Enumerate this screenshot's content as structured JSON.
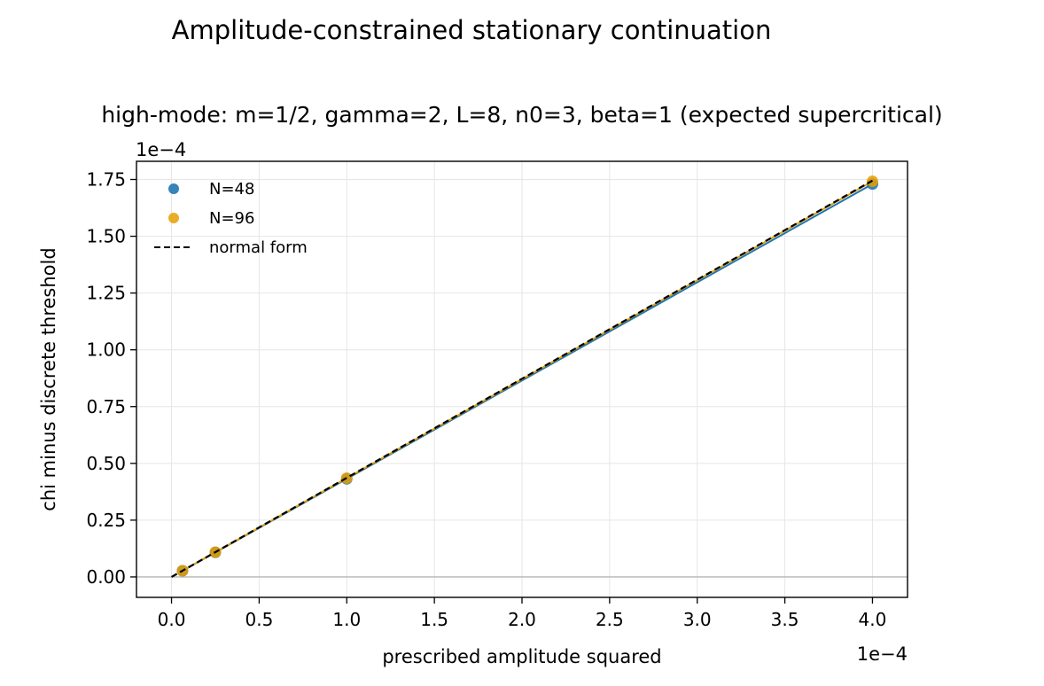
{
  "chart_data": {
    "type": "scatter",
    "title": "Amplitude-constrained stationary continuation",
    "subtitle": "high-mode: m=1/2, gamma=2, L=8, n0=3, beta=1 (expected supercritical)",
    "xlabel": "prescribed amplitude squared",
    "ylabel": "chi minus discrete threshold",
    "x_scale_label": "1e−4",
    "y_scale_label": "1e−4",
    "xlim": [
      -0.2,
      4.2
    ],
    "ylim": [
      -0.09,
      1.83
    ],
    "xticks": [
      0.0,
      0.5,
      1.0,
      1.5,
      2.0,
      2.5,
      3.0,
      3.5,
      4.0
    ],
    "xtick_labels": [
      "0.0",
      "0.5",
      "1.0",
      "1.5",
      "2.0",
      "2.5",
      "3.0",
      "3.5",
      "4.0"
    ],
    "yticks": [
      0.0,
      0.25,
      0.5,
      0.75,
      1.0,
      1.25,
      1.5,
      1.75
    ],
    "ytick_labels": [
      "0.00",
      "0.25",
      "0.50",
      "0.75",
      "1.00",
      "1.25",
      "1.50",
      "1.75"
    ],
    "grid": true,
    "legend_position": "top-left",
    "series": [
      {
        "name": "N=48",
        "kind": "scatter",
        "color": "#1f77b4",
        "x": [
          0.0625,
          0.25,
          1.0,
          4.0
        ],
        "y": [
          0.027,
          0.108,
          0.432,
          1.73
        ]
      },
      {
        "name": "N=96",
        "kind": "scatter",
        "color": "#e69f00",
        "x": [
          0.0625,
          0.25,
          1.0,
          4.0
        ],
        "y": [
          0.0272,
          0.109,
          0.435,
          1.742
        ]
      },
      {
        "name": "normal form",
        "kind": "line",
        "color": "#000000",
        "x": [
          0.0,
          4.0
        ],
        "y": [
          0.0,
          1.745
        ]
      }
    ]
  }
}
